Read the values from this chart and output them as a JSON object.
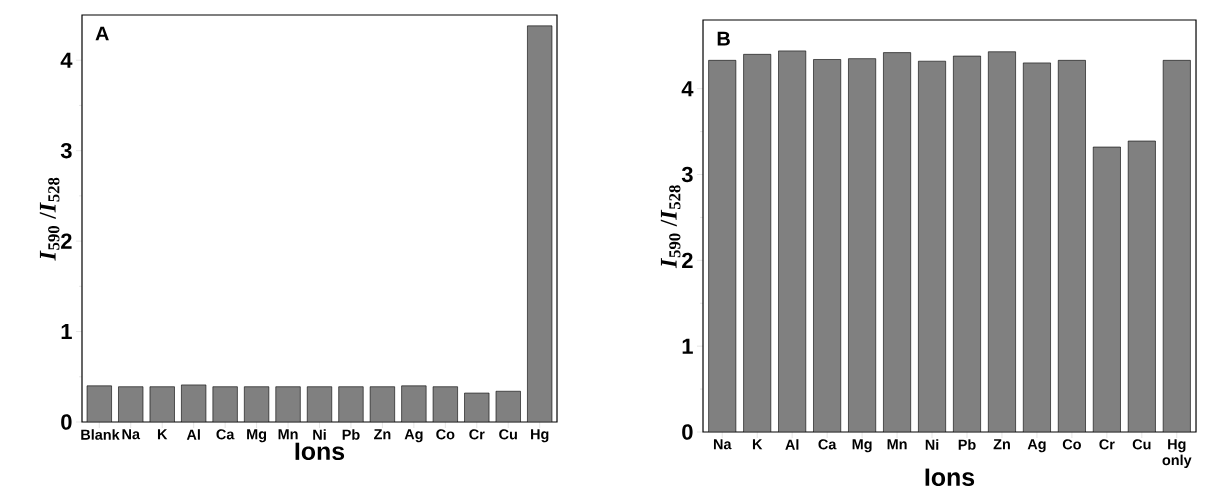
{
  "chart_data": [
    {
      "type": "bar",
      "categories": [
        "Blank",
        "Na",
        "K",
        "Al",
        "Ca",
        "Mg",
        "Mn",
        "Ni",
        "Pb",
        "Zn",
        "Ag",
        "Co",
        "Cr",
        "Cu",
        "Hg"
      ],
      "values": [
        0.4,
        0.39,
        0.39,
        0.41,
        0.39,
        0.39,
        0.39,
        0.39,
        0.39,
        0.39,
        0.4,
        0.39,
        0.32,
        0.34,
        4.38
      ],
      "color": "#808080",
      "ylim": [
        0,
        4.5
      ],
      "yticks": [
        0,
        1,
        2,
        3,
        4
      ],
      "xlabel": "Ions",
      "ylabel": "*I*$_{590}$ /*I*$_{528}$",
      "annotations": [
        "A"
      ]
    },
    {
      "type": "bar",
      "categories": [
        "Na",
        "K",
        "Al",
        "Ca",
        "Mg",
        "Mn",
        "Ni",
        "Pb",
        "Zn",
        "Ag",
        "Co",
        "Cr",
        "Cu",
        "Hg only"
      ],
      "values": [
        4.33,
        4.4,
        4.44,
        4.34,
        4.35,
        4.42,
        4.32,
        4.38,
        4.43,
        4.3,
        4.33,
        3.32,
        3.39,
        4.33
      ],
      "color": "#808080",
      "ylim": [
        0,
        4.8
      ],
      "yticks": [
        0,
        1,
        2,
        3,
        4
      ],
      "xlabel": "Ions",
      "ylabel": "*I*$_{590}$ /*I*$_{528}$",
      "annotations": [
        "B"
      ]
    }
  ]
}
